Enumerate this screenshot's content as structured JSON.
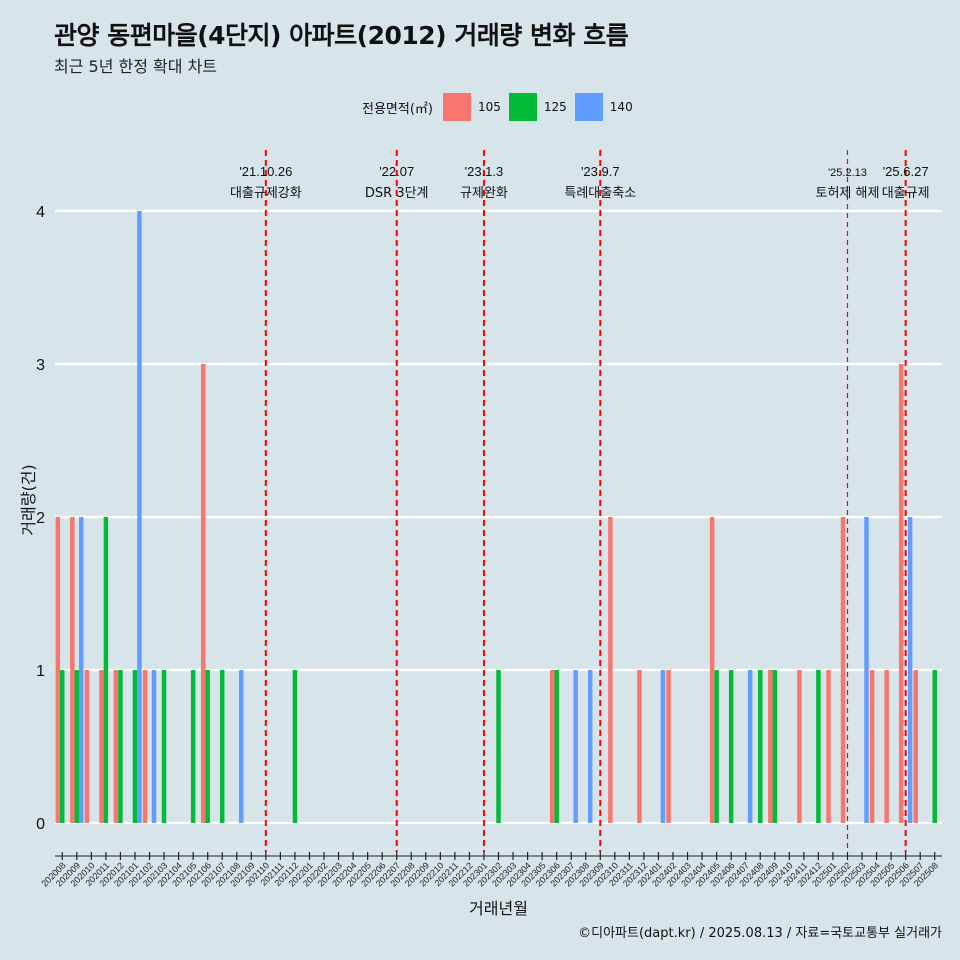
{
  "title": "관양 동편마을(4단지) 아파트(2012) 거래량 변화 흐름",
  "subtitle": "최근 5년 한정 확대 차트",
  "caption": "©디아파트(dapt.kr) / 2025.08.13 / 자료=국토교통부 실거래가",
  "legend": {
    "title": "전용면적(㎡)",
    "items": [
      {
        "label": "105",
        "color": "#F8766D"
      },
      {
        "label": "125",
        "color": "#00BA38"
      },
      {
        "label": "140",
        "color": "#619CFF"
      }
    ]
  },
  "chart_data": {
    "type": "bar",
    "xlabel": "거래년월",
    "ylabel": "거래량(건)",
    "ylim": [
      0,
      4
    ],
    "yticks": [
      0,
      1,
      2,
      3,
      4
    ],
    "grid": true,
    "legend_position": "top",
    "categories": [
      "202008",
      "202009",
      "202010",
      "202011",
      "202012",
      "202101",
      "202102",
      "202103",
      "202104",
      "202105",
      "202106",
      "202107",
      "202108",
      "202109",
      "202110",
      "202111",
      "202112",
      "202201",
      "202202",
      "202203",
      "202204",
      "202205",
      "202206",
      "202207",
      "202208",
      "202209",
      "202210",
      "202211",
      "202212",
      "202301",
      "202302",
      "202303",
      "202304",
      "202305",
      "202306",
      "202307",
      "202308",
      "202309",
      "202310",
      "202311",
      "202312",
      "202401",
      "202402",
      "202403",
      "202404",
      "202405",
      "202406",
      "202407",
      "202408",
      "202409",
      "202410",
      "202411",
      "202412",
      "202501",
      "202502",
      "202503",
      "202504",
      "202505",
      "202506",
      "202507",
      "202508"
    ],
    "series": [
      {
        "name": "105",
        "color": "#F8766D",
        "values": [
          2,
          2,
          1,
          1,
          1,
          0,
          1,
          0,
          0,
          0,
          3,
          0,
          0,
          0,
          0,
          0,
          0,
          0,
          0,
          0,
          0,
          0,
          0,
          0,
          0,
          0,
          0,
          0,
          0,
          0,
          0,
          0,
          0,
          0,
          1,
          0,
          0,
          0,
          2,
          0,
          1,
          0,
          1,
          0,
          0,
          2,
          0,
          0,
          0,
          1,
          0,
          1,
          0,
          1,
          2,
          0,
          1,
          1,
          3,
          1,
          0
        ]
      },
      {
        "name": "125",
        "color": "#00BA38",
        "values": [
          1,
          1,
          0,
          2,
          1,
          1,
          0,
          1,
          0,
          1,
          1,
          1,
          0,
          0,
          0,
          0,
          1,
          0,
          0,
          0,
          0,
          0,
          0,
          0,
          0,
          0,
          0,
          0,
          0,
          0,
          1,
          0,
          0,
          0,
          1,
          0,
          0,
          0,
          0,
          0,
          0,
          0,
          0,
          0,
          0,
          1,
          1,
          0,
          1,
          1,
          0,
          0,
          1,
          0,
          0,
          0,
          0,
          0,
          0,
          0,
          1
        ]
      },
      {
        "name": "140",
        "color": "#619CFF",
        "values": [
          0,
          2,
          0,
          0,
          0,
          4,
          1,
          0,
          0,
          0,
          0,
          0,
          1,
          0,
          0,
          0,
          0,
          0,
          0,
          0,
          0,
          0,
          0,
          0,
          0,
          0,
          0,
          0,
          0,
          0,
          0,
          0,
          0,
          0,
          0,
          1,
          1,
          0,
          0,
          0,
          0,
          1,
          0,
          0,
          0,
          0,
          0,
          1,
          0,
          0,
          0,
          0,
          0,
          0,
          0,
          2,
          0,
          0,
          2,
          0,
          0
        ]
      }
    ],
    "annotations": [
      {
        "x": "202110",
        "date": "'21.10.26",
        "label": "대출규제강화",
        "style": "dashed"
      },
      {
        "x": "202207",
        "date": "'22.07",
        "label": "DSR 3단계",
        "style": "dashed"
      },
      {
        "x": "202301",
        "date": "'23.1.3",
        "label": "규제완화",
        "style": "dashed"
      },
      {
        "x": "202309",
        "date": "'23.9.7",
        "label": "특례대출축소",
        "style": "dashed"
      },
      {
        "x": "202502",
        "date": "'25.2.13",
        "label": "토허제 해제",
        "style": "thin-dashed"
      },
      {
        "x": "202506",
        "date": "'25.6.27",
        "label": "대출규제",
        "style": "dashed"
      }
    ]
  }
}
